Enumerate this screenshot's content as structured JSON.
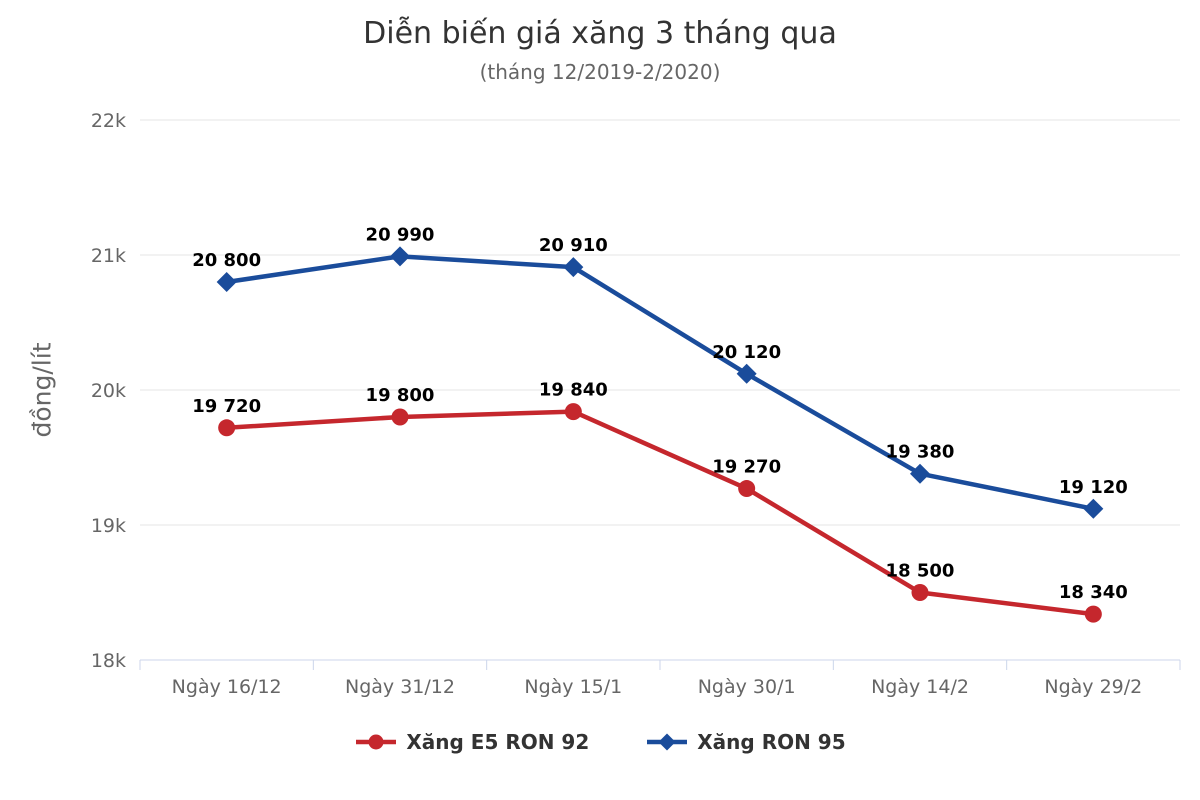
{
  "chart_data": {
    "type": "line",
    "title": "Diễn biến giá xăng 3 tháng qua",
    "subtitle": "(tháng 12/2019-2/2020)",
    "ylabel": "đồng/lít",
    "xlabel": "",
    "ylim": [
      18000,
      22000
    ],
    "y_ticks": [
      {
        "value": 18000,
        "label": "18k"
      },
      {
        "value": 19000,
        "label": "19k"
      },
      {
        "value": 20000,
        "label": "20k"
      },
      {
        "value": 21000,
        "label": "21k"
      },
      {
        "value": 22000,
        "label": "22k"
      }
    ],
    "categories": [
      "Ngày 16/12",
      "Ngày 31/12",
      "Ngày 15/1",
      "Ngày 30/1",
      "Ngày 14/2",
      "Ngày 29/2"
    ],
    "series": [
      {
        "name": "Xăng E5 RON 92",
        "marker": "circle",
        "color": "#c5272d",
        "values": [
          19720,
          19800,
          19840,
          19270,
          18500,
          18340
        ],
        "labels": [
          "19 720",
          "19 800",
          "19 840",
          "19 270",
          "18 500",
          "18 340"
        ]
      },
      {
        "name": "Xăng RON 95",
        "marker": "diamond",
        "color": "#1a4c9b",
        "values": [
          20800,
          20990,
          20910,
          20120,
          19380,
          19120
        ],
        "labels": [
          "20 800",
          "20 990",
          "20 910",
          "20 120",
          "19 380",
          "19 120"
        ]
      }
    ],
    "grid": "horizontal",
    "legend_position": "bottom"
  },
  "colors": {
    "title": "#333333",
    "subtitle": "#666666",
    "axis_text": "#666666",
    "data_label": "#000000",
    "gridline": "#e6e6e6",
    "axis_line": "#ccd6eb",
    "series_red": "#c5272d",
    "series_blue": "#1a4c9b"
  }
}
